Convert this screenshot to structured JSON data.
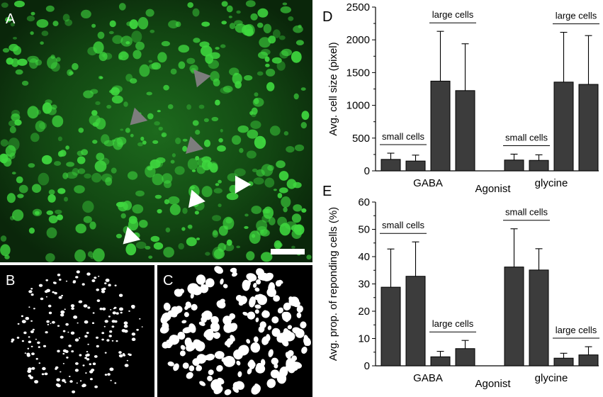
{
  "panels": {
    "A": {
      "label": "A"
    },
    "B": {
      "label": "B"
    },
    "C": {
      "label": "C"
    },
    "D": {
      "label": "D"
    },
    "E": {
      "label": "E"
    }
  },
  "colors": {
    "bar": "#3c3c3c",
    "micro_bg": "#0b2a0b",
    "micro_cell": "#3fd83f",
    "gray_arrow": "#7d7d7d",
    "white": "#ffffff"
  },
  "chart_data": [
    {
      "type": "bar",
      "panel": "D",
      "ylabel": "Avg. cell size (pixel)",
      "xlabel": "Agonist",
      "ylim": [
        0,
        2500
      ],
      "yticks": [
        0,
        500,
        1000,
        1500,
        2000,
        2500
      ],
      "groups": [
        {
          "name": "GABA",
          "bars": [
            {
              "value": 175,
              "error": 95
            },
            {
              "value": 150,
              "error": 90
            },
            {
              "value": 1370,
              "error": 760
            },
            {
              "value": 1225,
              "error": 715
            }
          ],
          "annotations": [
            {
              "text": "small cells",
              "bars": [
                0,
                1
              ]
            },
            {
              "text": "large cells",
              "bars": [
                2,
                3
              ]
            }
          ]
        },
        {
          "name": "glycine",
          "bars": [
            {
              "value": 165,
              "error": 90
            },
            {
              "value": 160,
              "error": 85
            },
            {
              "value": 1355,
              "error": 760
            },
            {
              "value": 1320,
              "error": 745
            }
          ],
          "annotations": [
            {
              "text": "small cells",
              "bars": [
                0,
                1
              ]
            },
            {
              "text": "large cells",
              "bars": [
                2,
                3
              ]
            }
          ]
        }
      ]
    },
    {
      "type": "bar",
      "panel": "E",
      "ylabel": "Avg. prop. of reponding cells (%)",
      "xlabel": "Agonist",
      "ylim": [
        0,
        60
      ],
      "yticks": [
        0,
        10,
        20,
        30,
        40,
        50,
        60
      ],
      "groups": [
        {
          "name": "GABA",
          "bars": [
            {
              "value": 28.8,
              "error": 14
            },
            {
              "value": 32.8,
              "error": 12.6
            },
            {
              "value": 3.3,
              "error": 2
            },
            {
              "value": 6.3,
              "error": 3
            }
          ],
          "annotations": [
            {
              "text": "small cells",
              "bars": [
                0,
                1
              ]
            },
            {
              "text": "large cells",
              "bars": [
                2,
                3
              ]
            }
          ]
        },
        {
          "name": "glycine",
          "bars": [
            {
              "value": 36.2,
              "error": 14
            },
            {
              "value": 35.1,
              "error": 7.8
            },
            {
              "value": 2.8,
              "error": 1.8
            },
            {
              "value": 4,
              "error": 3
            }
          ],
          "annotations": [
            {
              "text": "small cells",
              "bars": [
                0,
                1
              ]
            },
            {
              "text": "large cells",
              "bars": [
                2,
                3
              ]
            }
          ]
        }
      ]
    }
  ]
}
